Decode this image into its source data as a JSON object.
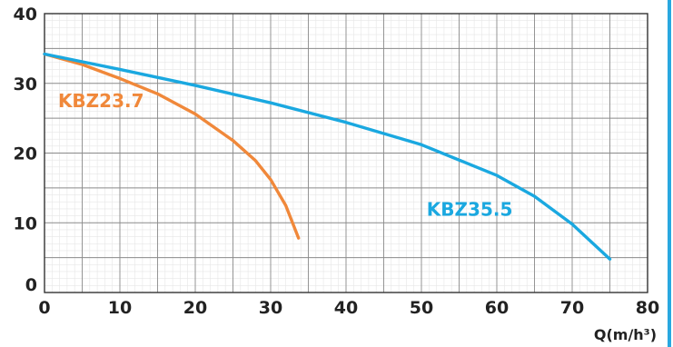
{
  "chart_data": {
    "type": "line",
    "title": "",
    "xlabel": "Q(m/h³)",
    "ylabel": "",
    "xlim": [
      0,
      80
    ],
    "ylim": [
      0,
      40
    ],
    "x_ticks": [
      "0",
      "10",
      "20",
      "30",
      "40",
      "50",
      "60",
      "70",
      "80"
    ],
    "y_ticks": [
      "0",
      "10",
      "20",
      "30",
      "40"
    ],
    "grid": true,
    "series": [
      {
        "name": "KBZ23.7",
        "color": "#f0883a",
        "points": [
          [
            0,
            34.2
          ],
          [
            5,
            32.7
          ],
          [
            10,
            30.7
          ],
          [
            15,
            28.5
          ],
          [
            20,
            25.6
          ],
          [
            25,
            21.8
          ],
          [
            28,
            18.9
          ],
          [
            30,
            16.2
          ],
          [
            32,
            12.5
          ],
          [
            33.7,
            7.8
          ]
        ]
      },
      {
        "name": "KBZ35.5",
        "color": "#1aa8e0",
        "points": [
          [
            0,
            34.2
          ],
          [
            10,
            32.0
          ],
          [
            20,
            29.7
          ],
          [
            30,
            27.2
          ],
          [
            40,
            24.4
          ],
          [
            50,
            21.2
          ],
          [
            60,
            16.8
          ],
          [
            65,
            13.8
          ],
          [
            70,
            9.8
          ],
          [
            75,
            4.8
          ]
        ]
      }
    ],
    "series_labels": [
      {
        "text": "KBZ23.7",
        "x": 1.8,
        "y": 26.6
      },
      {
        "text": "KBZ35.5",
        "x": 50.7,
        "y": 11.0
      }
    ]
  }
}
